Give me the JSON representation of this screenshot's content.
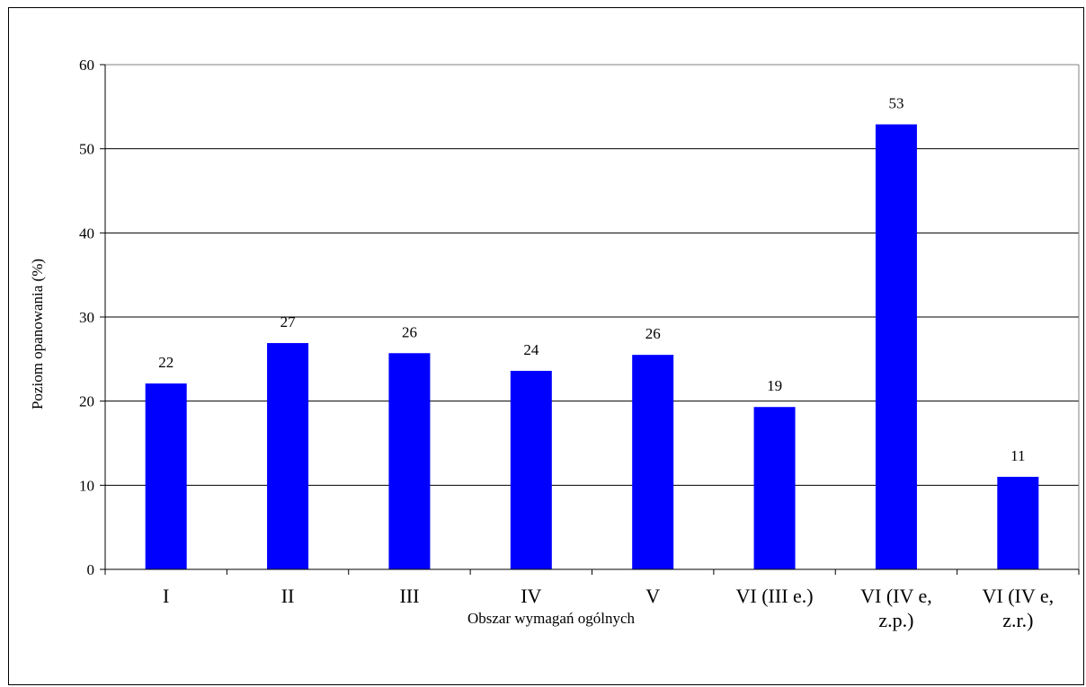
{
  "chart_data": {
    "type": "bar",
    "categories": [
      "I",
      "II",
      "III",
      "IV",
      "V",
      "VI (III e.)",
      "VI (IV e, z.p.)",
      "VI (IV e, z.r.)"
    ],
    "category_lines": [
      [
        "I"
      ],
      [
        "II"
      ],
      [
        "III"
      ],
      [
        "IV"
      ],
      [
        "V"
      ],
      [
        "VI (III e.)"
      ],
      [
        "VI (IV e,",
        "z.p.)"
      ],
      [
        "VI (IV e,",
        "z.r.)"
      ]
    ],
    "values": [
      22.1,
      26.9,
      25.7,
      23.6,
      25.5,
      19.3,
      52.9,
      11.0
    ],
    "data_labels": [
      "22",
      "27",
      "26",
      "24",
      "26",
      "19",
      "53",
      "11"
    ],
    "title": "",
    "xlabel": "Obszar wymagań ogólnych",
    "ylabel": "Poziom opanowania  (%)",
    "ylim": [
      0,
      60
    ],
    "yticks": [
      0,
      10,
      20,
      30,
      40,
      50,
      60
    ],
    "grid": true,
    "legend": "none",
    "bar_color": "#0000FF",
    "gridline_color": "#000000"
  }
}
